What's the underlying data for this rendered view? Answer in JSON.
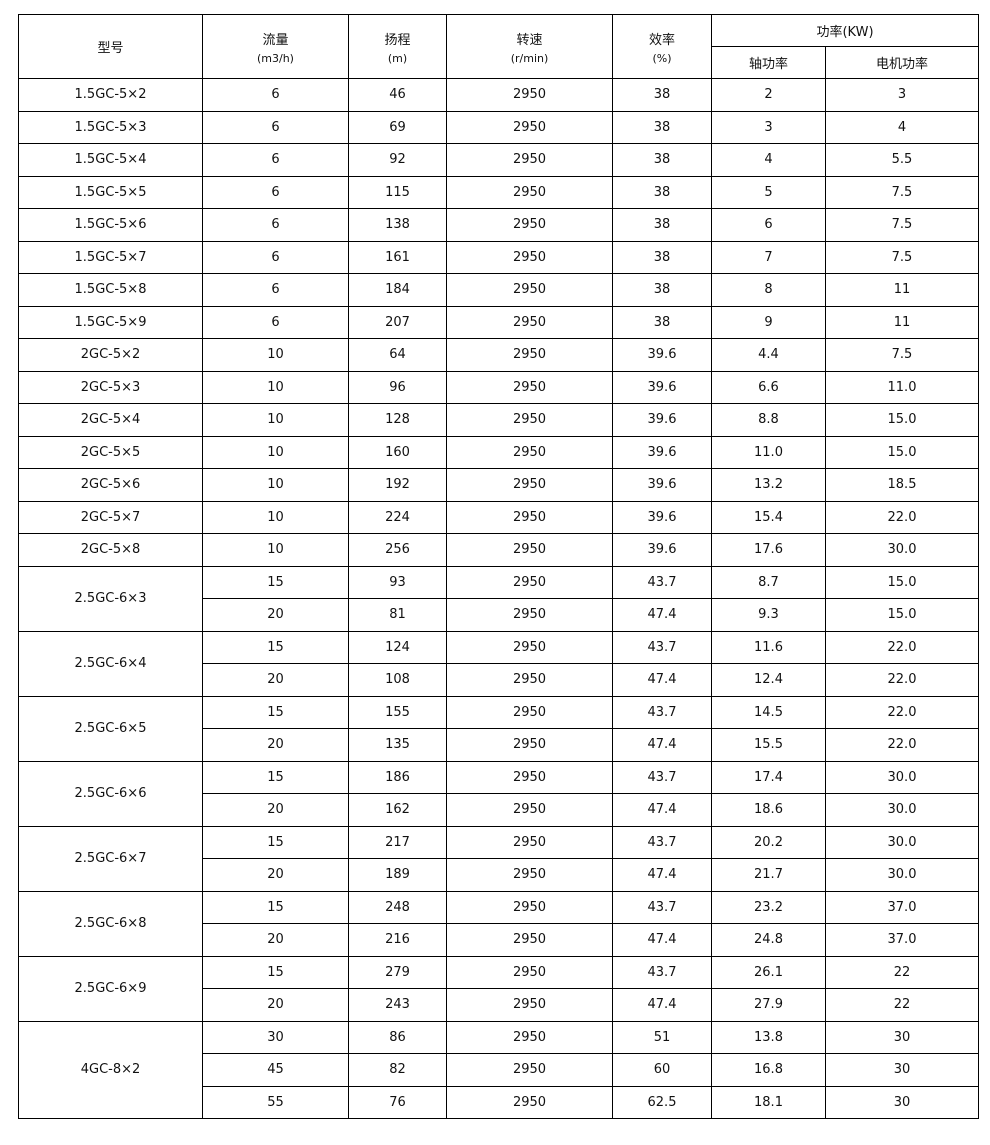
{
  "table": {
    "header": {
      "model": "型号",
      "flow": "流量",
      "flow_unit": "(m3/h)",
      "head": "扬程",
      "head_unit": "(m)",
      "speed": "转速",
      "speed_unit": "(r/min)",
      "eff": "效率",
      "eff_unit": "(%)",
      "power": "功率(KW)",
      "shaft": "轴功率",
      "motor": "电机功率"
    },
    "groups": [
      {
        "model": "1.5GC-5×2",
        "rows": [
          [
            "6",
            "46",
            "2950",
            "38",
            "2",
            "3"
          ]
        ]
      },
      {
        "model": "1.5GC-5×3",
        "rows": [
          [
            "6",
            "69",
            "2950",
            "38",
            "3",
            "4"
          ]
        ]
      },
      {
        "model": "1.5GC-5×4",
        "rows": [
          [
            "6",
            "92",
            "2950",
            "38",
            "4",
            "5.5"
          ]
        ]
      },
      {
        "model": "1.5GC-5×5",
        "rows": [
          [
            "6",
            "115",
            "2950",
            "38",
            "5",
            "7.5"
          ]
        ]
      },
      {
        "model": "1.5GC-5×6",
        "rows": [
          [
            "6",
            "138",
            "2950",
            "38",
            "6",
            "7.5"
          ]
        ]
      },
      {
        "model": "1.5GC-5×7",
        "rows": [
          [
            "6",
            "161",
            "2950",
            "38",
            "7",
            "7.5"
          ]
        ]
      },
      {
        "model": "1.5GC-5×8",
        "rows": [
          [
            "6",
            "184",
            "2950",
            "38",
            "8",
            "11"
          ]
        ]
      },
      {
        "model": "1.5GC-5×9",
        "rows": [
          [
            "6",
            "207",
            "2950",
            "38",
            "9",
            "11"
          ]
        ]
      },
      {
        "model": "2GC-5×2",
        "rows": [
          [
            "10",
            "64",
            "2950",
            "39.6",
            "4.4",
            "7.5"
          ]
        ]
      },
      {
        "model": "2GC-5×3",
        "rows": [
          [
            "10",
            "96",
            "2950",
            "39.6",
            "6.6",
            "11.0"
          ]
        ]
      },
      {
        "model": "2GC-5×4",
        "rows": [
          [
            "10",
            "128",
            "2950",
            "39.6",
            "8.8",
            "15.0"
          ]
        ]
      },
      {
        "model": "2GC-5×5",
        "rows": [
          [
            "10",
            "160",
            "2950",
            "39.6",
            "11.0",
            "15.0"
          ]
        ]
      },
      {
        "model": "2GC-5×6",
        "rows": [
          [
            "10",
            "192",
            "2950",
            "39.6",
            "13.2",
            "18.5"
          ]
        ]
      },
      {
        "model": "2GC-5×7",
        "rows": [
          [
            "10",
            "224",
            "2950",
            "39.6",
            "15.4",
            "22.0"
          ]
        ]
      },
      {
        "model": "2GC-5×8",
        "rows": [
          [
            "10",
            "256",
            "2950",
            "39.6",
            "17.6",
            "30.0"
          ]
        ]
      },
      {
        "model": "2.5GC-6×3",
        "rows": [
          [
            "15",
            "93",
            "2950",
            "43.7",
            "8.7",
            "15.0"
          ],
          [
            "20",
            "81",
            "2950",
            "47.4",
            "9.3",
            "15.0"
          ]
        ]
      },
      {
        "model": "2.5GC-6×4",
        "rows": [
          [
            "15",
            "124",
            "2950",
            "43.7",
            "11.6",
            "22.0"
          ],
          [
            "20",
            "108",
            "2950",
            "47.4",
            "12.4",
            "22.0"
          ]
        ]
      },
      {
        "model": "2.5GC-6×5",
        "rows": [
          [
            "15",
            "155",
            "2950",
            "43.7",
            "14.5",
            "22.0"
          ],
          [
            "20",
            "135",
            "2950",
            "47.4",
            "15.5",
            "22.0"
          ]
        ]
      },
      {
        "model": "2.5GC-6×6",
        "rows": [
          [
            "15",
            "186",
            "2950",
            "43.7",
            "17.4",
            "30.0"
          ],
          [
            "20",
            "162",
            "2950",
            "47.4",
            "18.6",
            "30.0"
          ]
        ]
      },
      {
        "model": "2.5GC-6×7",
        "rows": [
          [
            "15",
            "217",
            "2950",
            "43.7",
            "20.2",
            "30.0"
          ],
          [
            "20",
            "189",
            "2950",
            "47.4",
            "21.7",
            "30.0"
          ]
        ]
      },
      {
        "model": "2.5GC-6×8",
        "rows": [
          [
            "15",
            "248",
            "2950",
            "43.7",
            "23.2",
            "37.0"
          ],
          [
            "20",
            "216",
            "2950",
            "47.4",
            "24.8",
            "37.0"
          ]
        ]
      },
      {
        "model": "2.5GC-6×9",
        "rows": [
          [
            "15",
            "279",
            "2950",
            "43.7",
            "26.1",
            "22"
          ],
          [
            "20",
            "243",
            "2950",
            "47.4",
            "27.9",
            "22"
          ]
        ]
      },
      {
        "model": "4GC-8×2",
        "rows": [
          [
            "30",
            "86",
            "2950",
            "51",
            "13.8",
            "30"
          ],
          [
            "45",
            "82",
            "2950",
            "60",
            "16.8",
            "30"
          ],
          [
            "55",
            "76",
            "2950",
            "62.5",
            "18.1",
            "30"
          ]
        ]
      }
    ]
  }
}
